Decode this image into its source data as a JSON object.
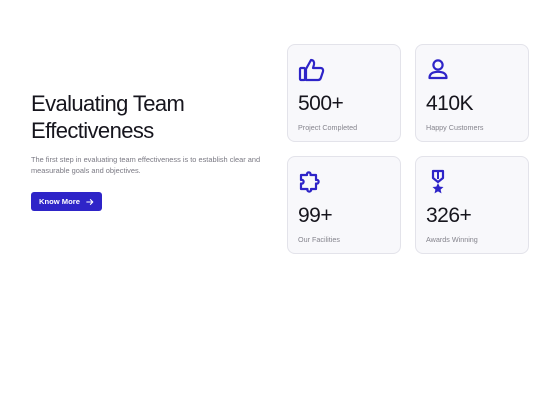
{
  "hero": {
    "title_line1": "Evaluating Team",
    "title_line2": "Effectiveness",
    "description": "The first step in evaluating team effectiveness is to establish clear and measurable goals and objectives.",
    "button_label": "Know More"
  },
  "stats": [
    {
      "icon": "thumbs-up-icon",
      "value": "500+",
      "label": "Project Completed"
    },
    {
      "icon": "user-icon",
      "value": "410K",
      "label": "Happy Customers"
    },
    {
      "icon": "puzzle-icon",
      "value": "99+",
      "label": "Our Facilities"
    },
    {
      "icon": "award-medal-icon",
      "value": "326+",
      "label": "Awards Winning"
    }
  ],
  "colors": {
    "accent": "#2e24c8",
    "card_bg": "#f8f8fb",
    "card_border": "#e3e3ea",
    "text_dark": "#16151d",
    "text_muted": "#85848d"
  }
}
